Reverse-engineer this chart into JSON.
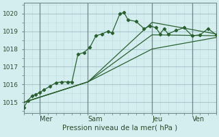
{
  "xlabel": "Pression niveau de la mer( hPa )",
  "background_color": "#d4eef0",
  "grid_color_major": "#a8c8cc",
  "grid_color_minor": "#c4dde0",
  "line_color": "#2a6030",
  "xlim": [
    0,
    96
  ],
  "ylim": [
    1014.4,
    1020.6
  ],
  "yticks": [
    1015,
    1016,
    1017,
    1018,
    1019,
    1020
  ],
  "xtick_positions": [
    8,
    32,
    64,
    84
  ],
  "xtick_labels": [
    "Mer",
    "Sam",
    "Jeu",
    "Ven"
  ],
  "vline_positions": [
    8,
    32,
    64,
    84
  ],
  "minor_xticks": [
    0,
    4,
    8,
    12,
    16,
    20,
    24,
    28,
    32,
    36,
    40,
    44,
    48,
    52,
    56,
    60,
    64,
    68,
    72,
    76,
    80,
    84,
    88,
    92,
    96
  ],
  "minor_yticks": [
    1014.5,
    1015.0,
    1015.5,
    1016.0,
    1016.5,
    1017.0,
    1017.5,
    1018.0,
    1018.5,
    1019.0,
    1019.5,
    1020.0,
    1020.5
  ],
  "series_main": {
    "x": [
      0,
      2,
      4,
      6,
      8,
      10,
      13,
      16,
      19,
      22,
      24,
      27,
      30,
      33,
      36,
      39,
      42,
      44,
      48,
      50,
      52,
      56,
      60,
      63,
      66,
      68,
      70,
      72,
      76,
      80,
      84,
      88,
      92,
      96
    ],
    "y": [
      1014.7,
      1015.1,
      1015.35,
      1015.45,
      1015.55,
      1015.7,
      1015.9,
      1016.1,
      1016.15,
      1016.15,
      1016.15,
      1017.7,
      1017.8,
      1018.1,
      1018.75,
      1018.85,
      1019.0,
      1018.9,
      1020.0,
      1020.05,
      1019.65,
      1019.55,
      1019.15,
      1019.3,
      1019.2,
      1018.85,
      1019.15,
      1018.85,
      1019.05,
      1019.2,
      1018.75,
      1018.8,
      1019.15,
      1018.8
    ]
  },
  "series_smooth": [
    {
      "x": [
        0,
        32,
        64,
        96
      ],
      "y": [
        1015.0,
        1016.15,
        1019.5,
        1018.85
      ]
    },
    {
      "x": [
        0,
        32,
        64,
        96
      ],
      "y": [
        1015.0,
        1016.15,
        1018.8,
        1018.75
      ]
    },
    {
      "x": [
        0,
        32,
        64,
        96
      ],
      "y": [
        1015.0,
        1016.15,
        1018.0,
        1018.65
      ]
    }
  ]
}
